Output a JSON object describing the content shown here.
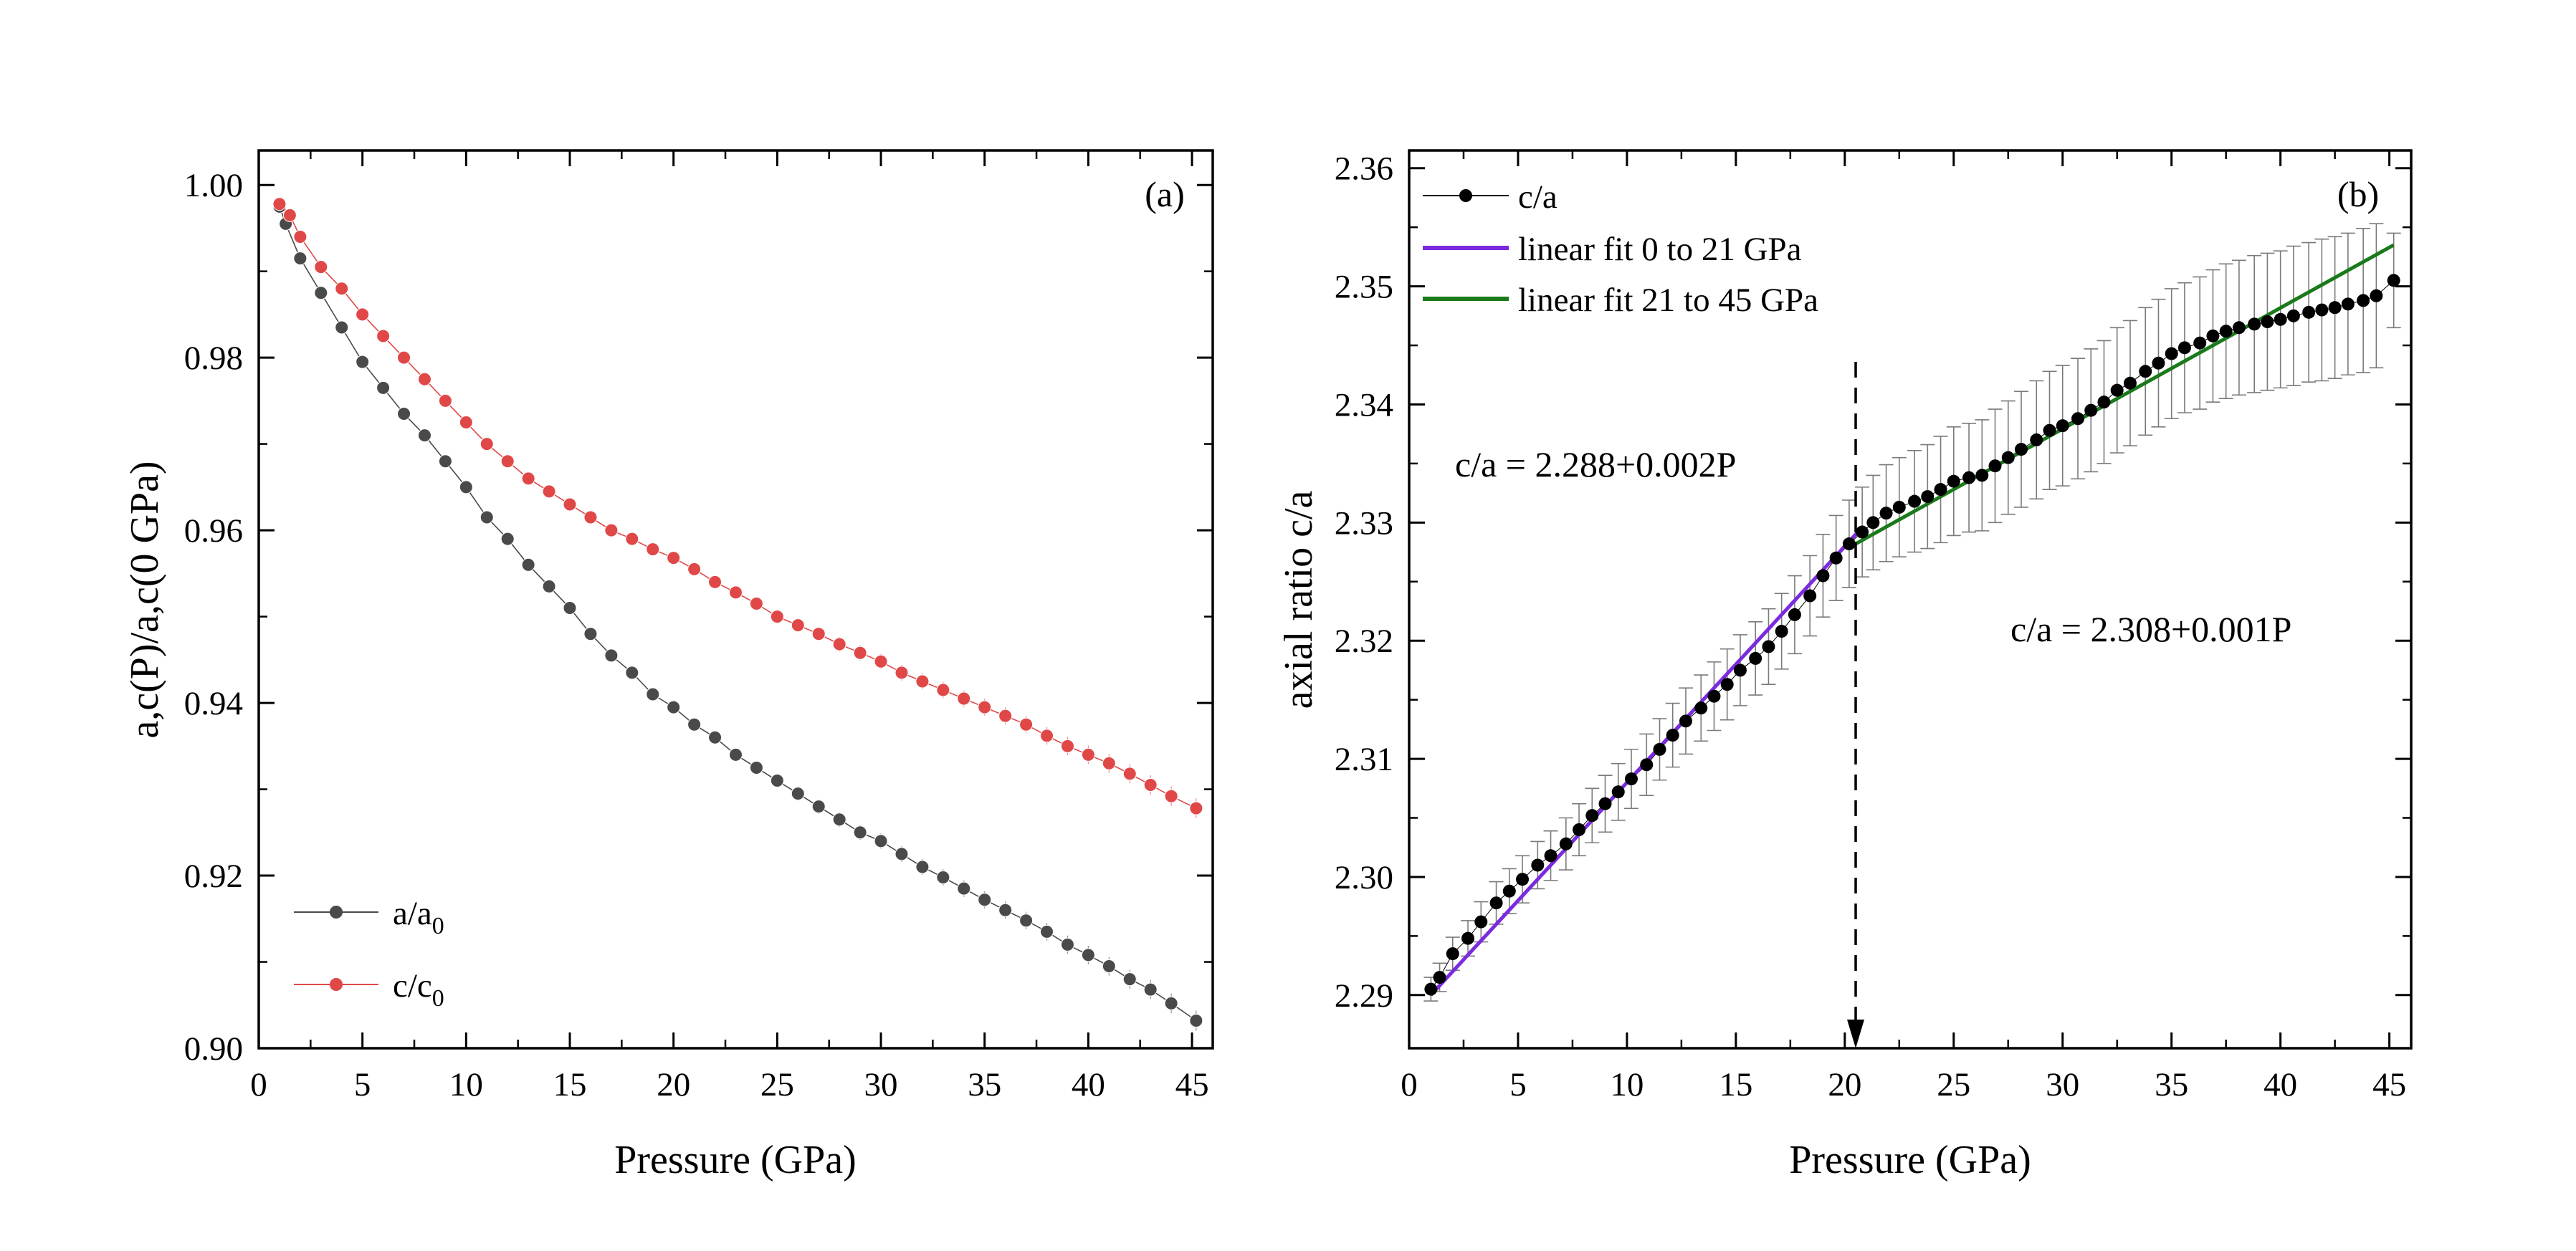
{
  "chart_data": [
    {
      "panel": "(a)",
      "type": "scatter",
      "xlabel": "Pressure (GPa)",
      "ylabel": "a,c(P)/a,c(0 GPa)",
      "xlim": [
        0,
        46
      ],
      "ylim": [
        0.9,
        1.004
      ],
      "xticks": [
        "0",
        "5",
        "10",
        "15",
        "20",
        "25",
        "30",
        "35",
        "40",
        "45"
      ],
      "yticks": [
        "0.90",
        "0.92",
        "0.94",
        "0.96",
        "0.98",
        "1.00"
      ],
      "legend_position": "bottom-left",
      "series": [
        {
          "name": "a/a",
          "name_sub": "0",
          "color": "#4a4a4a",
          "x": [
            1.0,
            1.3,
            2.0,
            3.0,
            4.0,
            5.0,
            6.0,
            7.0,
            8.0,
            9.0,
            10.0,
            11.0,
            12.0,
            13.0,
            14.0,
            15.0,
            16.0,
            17.0,
            18.0,
            19.0,
            20.0,
            21.0,
            22.0,
            23.0,
            24.0,
            25.0,
            26.0,
            27.0,
            28.0,
            29.0,
            30.0,
            31.0,
            32.0,
            33.0,
            34.0,
            35.0,
            36.0,
            37.0,
            38.0,
            39.0,
            40.0,
            41.0,
            42.0,
            43.0,
            44.0,
            45.2
          ],
          "values": [
            0.9975,
            0.9955,
            0.9915,
            0.9875,
            0.9835,
            0.9795,
            0.9765,
            0.9735,
            0.971,
            0.968,
            0.965,
            0.9615,
            0.959,
            0.956,
            0.9535,
            0.951,
            0.948,
            0.9455,
            0.9435,
            0.941,
            0.9395,
            0.9375,
            0.936,
            0.934,
            0.9325,
            0.931,
            0.9295,
            0.928,
            0.9265,
            0.925,
            0.924,
            0.9225,
            0.921,
            0.9198,
            0.9185,
            0.9172,
            0.916,
            0.9148,
            0.9135,
            0.912,
            0.9108,
            0.9095,
            0.908,
            0.9068,
            0.9052,
            0.9032
          ]
        },
        {
          "name": "c/c",
          "name_sub": "0",
          "color": "#e04848",
          "x": [
            1.0,
            1.5,
            2.0,
            3.0,
            4.0,
            5.0,
            6.0,
            7.0,
            8.0,
            9.0,
            10.0,
            11.0,
            12.0,
            13.0,
            14.0,
            15.0,
            16.0,
            17.0,
            18.0,
            19.0,
            20.0,
            21.0,
            22.0,
            23.0,
            24.0,
            25.0,
            26.0,
            27.0,
            28.0,
            29.0,
            30.0,
            31.0,
            32.0,
            33.0,
            34.0,
            35.0,
            36.0,
            37.0,
            38.0,
            39.0,
            40.0,
            41.0,
            42.0,
            43.0,
            44.0,
            45.2
          ],
          "values": [
            0.9978,
            0.9965,
            0.994,
            0.9905,
            0.988,
            0.985,
            0.9825,
            0.98,
            0.9775,
            0.975,
            0.9725,
            0.97,
            0.968,
            0.966,
            0.9645,
            0.963,
            0.9615,
            0.96,
            0.959,
            0.9578,
            0.9568,
            0.9555,
            0.954,
            0.9528,
            0.9515,
            0.95,
            0.949,
            0.948,
            0.9468,
            0.9458,
            0.9448,
            0.9435,
            0.9425,
            0.9415,
            0.9405,
            0.9395,
            0.9385,
            0.9375,
            0.9362,
            0.935,
            0.934,
            0.933,
            0.9318,
            0.9305,
            0.9292,
            0.9278
          ]
        }
      ]
    },
    {
      "panel": "(b)",
      "type": "scatter",
      "xlabel": "Pressure (GPa)",
      "ylabel": "axial ratio c/a",
      "xlim": [
        0,
        46
      ],
      "ylim": [
        2.2855,
        2.3615
      ],
      "xticks": [
        "0",
        "5",
        "10",
        "15",
        "20",
        "25",
        "30",
        "35",
        "40",
        "45"
      ],
      "yticks": [
        "2.29",
        "2.30",
        "2.31",
        "2.32",
        "2.33",
        "2.34",
        "2.35",
        "2.36"
      ],
      "legend_position": "top-left",
      "series": [
        {
          "name": "c/a",
          "color": "#000000",
          "x": [
            1.0,
            1.4,
            2.0,
            2.7,
            3.3,
            4.0,
            4.6,
            5.2,
            5.9,
            6.5,
            7.2,
            7.8,
            8.4,
            9.0,
            9.6,
            10.2,
            10.9,
            11.5,
            12.1,
            12.7,
            13.4,
            14.0,
            14.6,
            15.2,
            15.9,
            16.5,
            17.1,
            17.7,
            18.4,
            19.0,
            19.6,
            20.2,
            20.8,
            21.3,
            21.9,
            22.5,
            23.2,
            23.8,
            24.4,
            25.0,
            25.7,
            26.3,
            26.9,
            27.5,
            28.1,
            28.8,
            29.4,
            30.0,
            30.7,
            31.3,
            31.9,
            32.5,
            33.1,
            33.8,
            34.4,
            35.0,
            35.6,
            36.3,
            36.9,
            37.5,
            38.1,
            38.8,
            39.4,
            40.0,
            40.6,
            41.3,
            41.9,
            42.5,
            43.1,
            43.8,
            44.4,
            45.2
          ],
          "values": [
            2.2905,
            2.2915,
            2.2935,
            2.2948,
            2.2962,
            2.2978,
            2.2988,
            2.2998,
            2.301,
            2.3018,
            2.3028,
            2.304,
            2.3052,
            2.3062,
            2.3072,
            2.3083,
            2.3095,
            2.3108,
            2.312,
            2.3132,
            2.3143,
            2.3153,
            2.3163,
            2.3175,
            2.3185,
            2.3195,
            2.3208,
            2.3222,
            2.3238,
            2.3255,
            2.327,
            2.3282,
            2.3292,
            2.33,
            2.3308,
            2.3313,
            2.3318,
            2.3322,
            2.3328,
            2.3335,
            2.3338,
            2.334,
            2.3348,
            2.3355,
            2.3362,
            2.337,
            2.3378,
            2.3382,
            2.3388,
            2.3395,
            2.3402,
            2.3412,
            2.3418,
            2.3428,
            2.3435,
            2.3443,
            2.3448,
            2.3452,
            2.3458,
            2.3462,
            2.3465,
            2.3468,
            2.347,
            2.3472,
            2.3475,
            2.3478,
            2.348,
            2.3482,
            2.3485,
            2.3488,
            2.3492,
            2.3505
          ],
          "errors": [
            0.001,
            0.0012,
            0.0014,
            0.0015,
            0.0017,
            0.0018,
            0.0019,
            0.002,
            0.002,
            0.0021,
            0.0022,
            0.0022,
            0.0023,
            0.0024,
            0.0024,
            0.0025,
            0.0026,
            0.0026,
            0.0027,
            0.0028,
            0.0028,
            0.0029,
            0.003,
            0.003,
            0.0031,
            0.0032,
            0.0032,
            0.0033,
            0.0034,
            0.0035,
            0.0036,
            0.0037,
            0.0038,
            0.004,
            0.0041,
            0.0042,
            0.0043,
            0.0044,
            0.0045,
            0.0046,
            0.0046,
            0.0047,
            0.0048,
            0.0048,
            0.0049,
            0.005,
            0.005,
            0.0051,
            0.0051,
            0.0052,
            0.0052,
            0.0053,
            0.0053,
            0.0054,
            0.0054,
            0.0055,
            0.0055,
            0.0056,
            0.0056,
            0.0057,
            0.0057,
            0.0058,
            0.0058,
            0.0058,
            0.0059,
            0.0059,
            0.006,
            0.006,
            0.006,
            0.0061,
            0.0061,
            0.004
          ]
        }
      ],
      "fits": [
        {
          "name": "linear fit 0 to 21 GPa",
          "color": "#7b2ae0",
          "x_range": [
            1.0,
            20.8
          ],
          "intercept": 2.288,
          "slope": 0.002
        },
        {
          "name": "linear fit 21 to 45 GPa",
          "color": "#1a7a1a",
          "x_range": [
            20.5,
            45.2
          ],
          "y_range": [
            2.3282,
            2.3535
          ]
        }
      ],
      "annotations": [
        {
          "text": "c/a = 2.288+0.002P"
        },
        {
          "text": "c/a = 2.308+0.001P"
        }
      ],
      "transition_pressure": 20.5
    }
  ]
}
